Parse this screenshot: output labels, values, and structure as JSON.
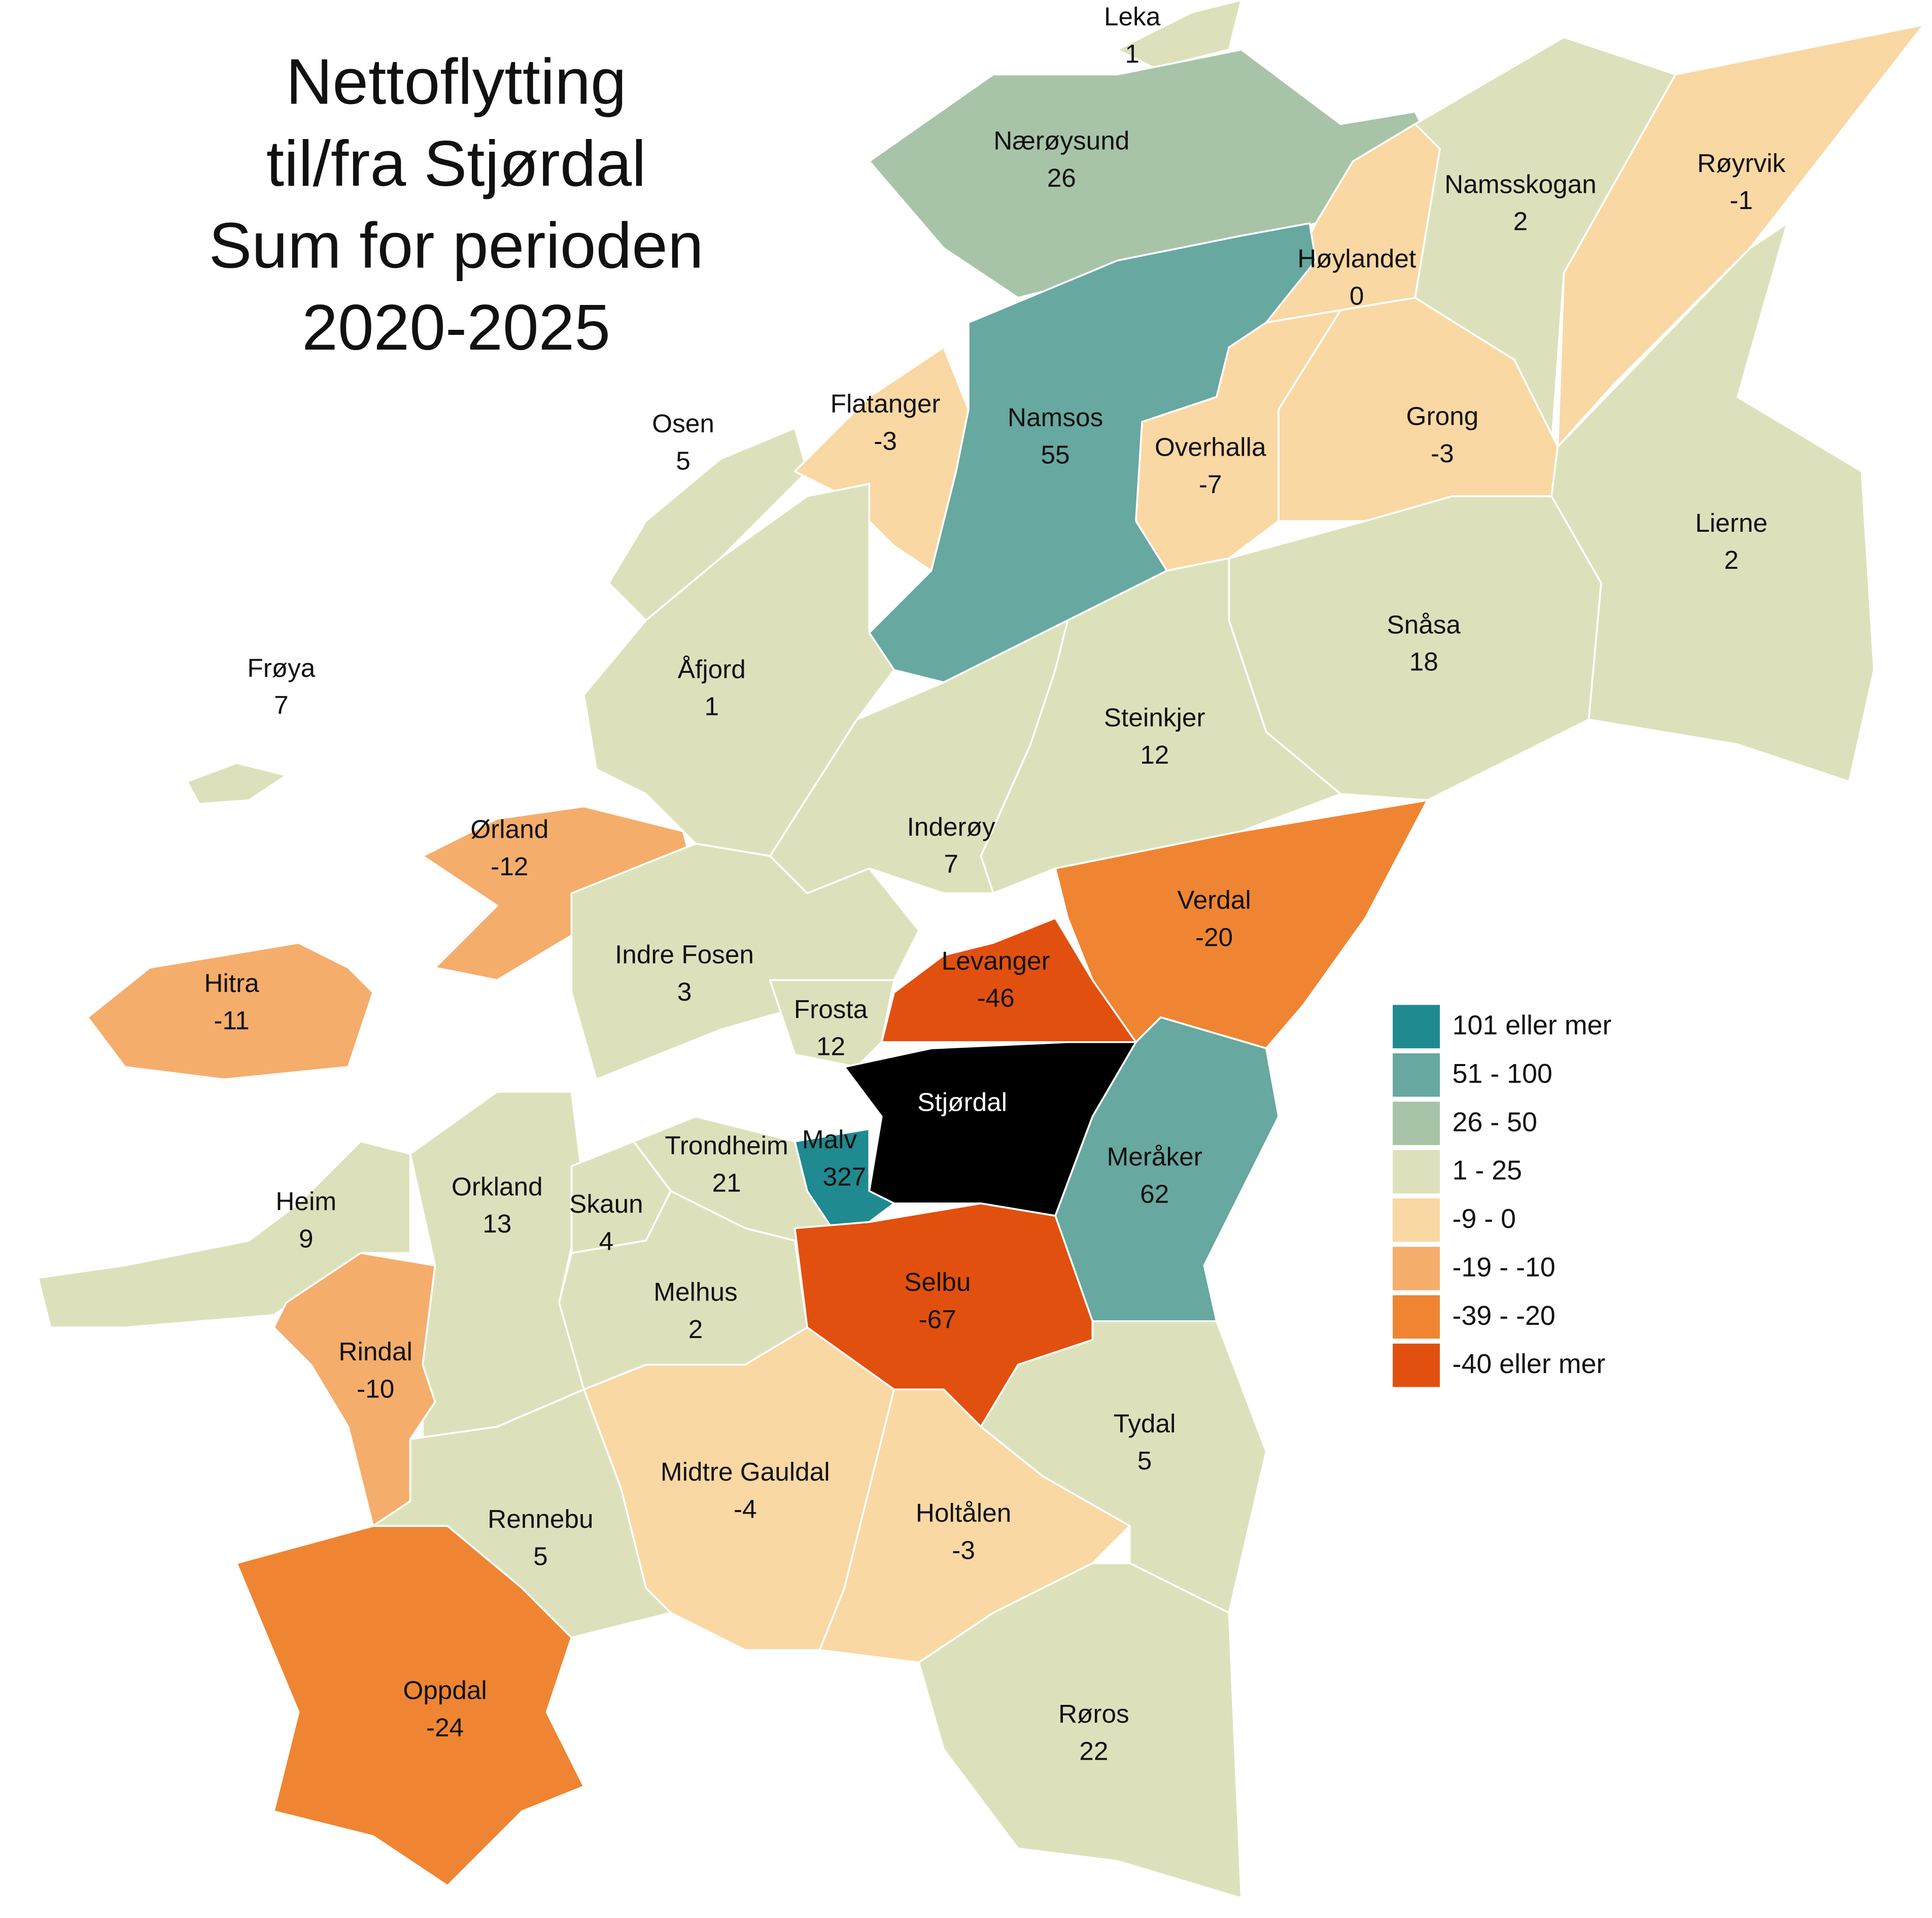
{
  "title": [
    "Nettoflytting",
    "til/fra Stjørdal",
    "Sum for perioden",
    "2020-2025"
  ],
  "municipalities": [
    {
      "name": "Leka",
      "value": 1,
      "color": "#dde1bb"
    },
    {
      "name": "Nærøysund",
      "value": 26,
      "color": "#a8c4a8"
    },
    {
      "name": "Namsskogan",
      "value": 2,
      "color": "#dde1bb"
    },
    {
      "name": "Røyrvik",
      "value": -1,
      "color": "#f9d8a4"
    },
    {
      "name": "Høylandet",
      "value": 0,
      "color": "#f9d8a4"
    },
    {
      "name": "Osen",
      "value": 5,
      "color": "#dde1bb"
    },
    {
      "name": "Flatanger",
      "value": -3,
      "color": "#f9d8a4"
    },
    {
      "name": "Namsos",
      "value": 55,
      "color": "#67a8a0"
    },
    {
      "name": "Overhalla",
      "value": -7,
      "color": "#f9d8a4"
    },
    {
      "name": "Grong",
      "value": -3,
      "color": "#f9d8a4"
    },
    {
      "name": "Lierne",
      "value": 2,
      "color": "#dde1bb"
    },
    {
      "name": "Snåsa",
      "value": 18,
      "color": "#dde1bb"
    },
    {
      "name": "Frøya",
      "value": 7,
      "color": "#dde1bb"
    },
    {
      "name": "Åfjord",
      "value": 1,
      "color": "#dde1bb"
    },
    {
      "name": "Steinkjer",
      "value": 12,
      "color": "#dde1bb"
    },
    {
      "name": "Ørland",
      "value": -12,
      "color": "#f5ad6c"
    },
    {
      "name": "Inderøy",
      "value": 7,
      "color": "#dde1bb"
    },
    {
      "name": "Verdal",
      "value": -20,
      "color": "#ef8532"
    },
    {
      "name": "Indre Fosen",
      "value": 3,
      "color": "#dde1bb"
    },
    {
      "name": "Levanger",
      "value": -46,
      "color": "#e2500f"
    },
    {
      "name": "Hitra",
      "value": -11,
      "color": "#f5ad6c"
    },
    {
      "name": "Frosta",
      "value": 12,
      "color": "#dde1bb"
    },
    {
      "name": "Stjørdal",
      "color": "#000000"
    },
    {
      "name": "Trondheim",
      "value": 21,
      "color": "#dde1bb"
    },
    {
      "name": "Malv",
      "value": 327,
      "color": "#1f8a8f"
    },
    {
      "name": "Meråker",
      "value": 62,
      "color": "#67a8a0"
    },
    {
      "name": "Heim",
      "value": 9,
      "color": "#dde1bb"
    },
    {
      "name": "Orkland",
      "value": 13,
      "color": "#dde1bb"
    },
    {
      "name": "Skaun",
      "value": 4,
      "color": "#dde1bb"
    },
    {
      "name": "Melhus",
      "value": 2,
      "color": "#dde1bb"
    },
    {
      "name": "Selbu",
      "value": -67,
      "color": "#e2500f"
    },
    {
      "name": "Rindal",
      "value": -10,
      "color": "#f5ad6c"
    },
    {
      "name": "Tydal",
      "value": 5,
      "color": "#dde1bb"
    },
    {
      "name": "Midtre Gauldal",
      "value": -4,
      "color": "#f9d8a4"
    },
    {
      "name": "Holtålen",
      "value": -3,
      "color": "#f9d8a4"
    },
    {
      "name": "Rennebu",
      "value": 5,
      "color": "#dde1bb"
    },
    {
      "name": "Oppdal",
      "value": -24,
      "color": "#ef8532"
    },
    {
      "name": "Røros",
      "value": 22,
      "color": "#dde1bb"
    }
  ],
  "legend": [
    {
      "label": "101 eller mer",
      "color": "#1f8a8f"
    },
    {
      "label": "51 - 100",
      "color": "#67a8a0"
    },
    {
      "label": "26 - 50",
      "color": "#a8c4a8"
    },
    {
      "label": "1 - 25",
      "color": "#dde1bb"
    },
    {
      "label": "-9 - 0",
      "color": "#f9d8a4"
    },
    {
      "label": "-19 - -10",
      "color": "#f5ad6c"
    },
    {
      "label": "-39 - -20",
      "color": "#ef8532"
    },
    {
      "label": "-40 eller mer",
      "color": "#e2500f"
    }
  ]
}
